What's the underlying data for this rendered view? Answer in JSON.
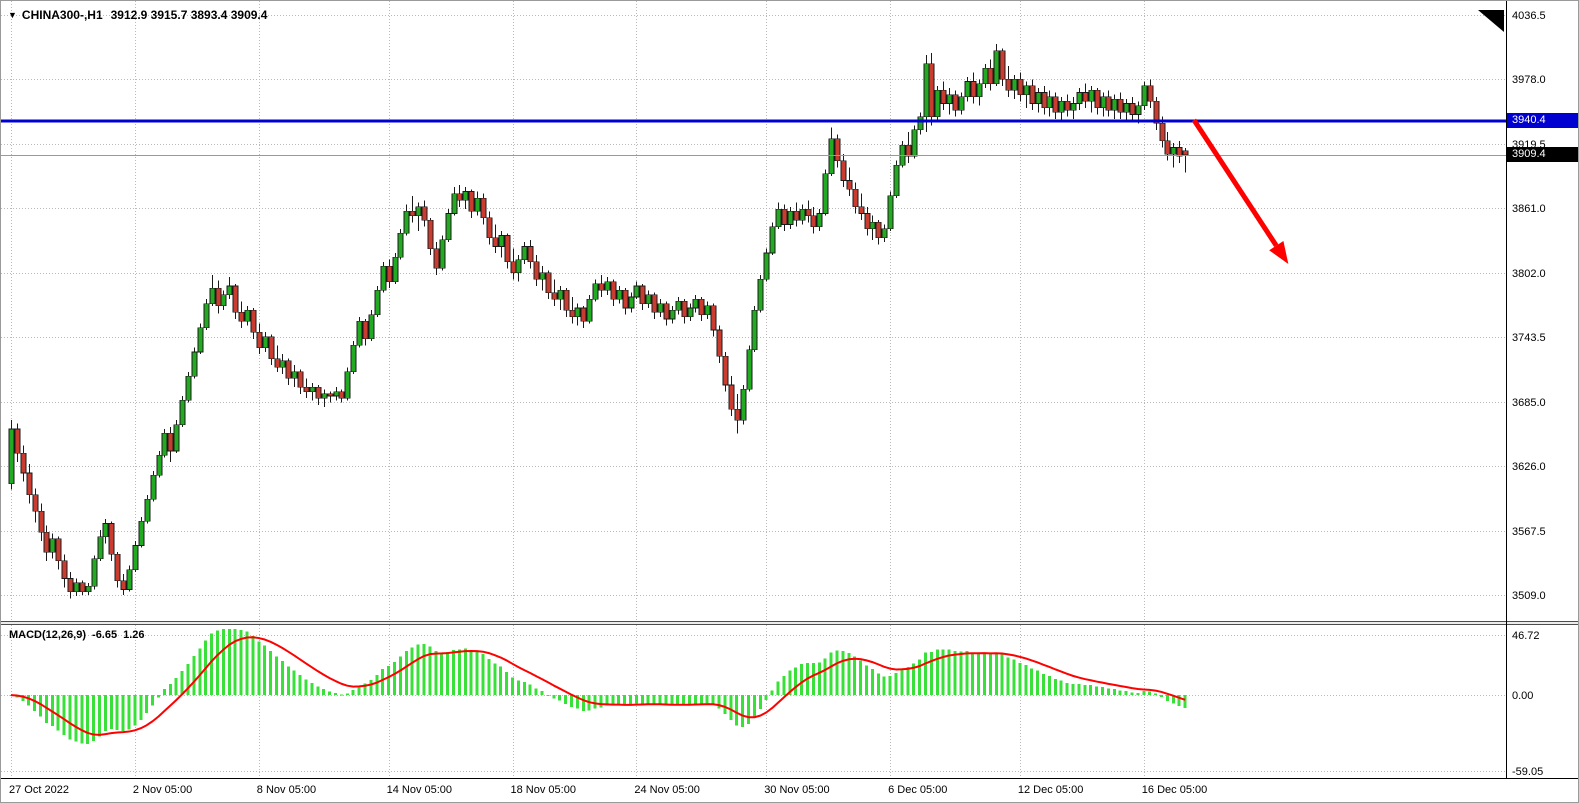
{
  "header": {
    "collapse_icon": "▼",
    "symbol_timeframe": "CHINA300-,H1",
    "ohlc": "3912.9 3915.7 3893.4 3909.4"
  },
  "colors": {
    "background": "#ffffff",
    "grid": "#b9b9b9",
    "bull": "#22ab22",
    "bear": "#cb3c30",
    "wick": "#1a1a1a",
    "outline": "#1a1a1a",
    "hline": "#0000d0",
    "current_line": "#9a9a9a",
    "arrow": "#ff0000",
    "macd_hist": "#3ae03a",
    "macd_signal": "#ff0000",
    "tag_current_bg": "#000000"
  },
  "chart_data": [
    {
      "type": "candlestick",
      "title": "CHINA300-,H1",
      "symbol": "CHINA300-",
      "timeframe": "H1",
      "last_ohlc": {
        "open": 3912.9,
        "high": 3915.7,
        "low": 3893.4,
        "close": 3909.4
      },
      "ylim": [
        3509.0,
        4036.5
      ],
      "grid": "dotted",
      "y_ticks": [
        "4036.5",
        "3978.0",
        "3919.5",
        "3861.0",
        "3802.0",
        "3743.5",
        "3685.0",
        "3626.0",
        "3567.5",
        "3509.0"
      ],
      "x_ticks": [
        {
          "bar": 0,
          "label": "27 Oct 2022"
        },
        {
          "bar": 21,
          "label": "2 Nov 05:00"
        },
        {
          "bar": 42,
          "label": "8 Nov 05:00"
        },
        {
          "bar": 64,
          "label": "14 Nov 05:00"
        },
        {
          "bar": 85,
          "label": "18 Nov 05:00"
        },
        {
          "bar": 106,
          "label": "24 Nov 05:00"
        },
        {
          "bar": 128,
          "label": "30 Nov 05:00"
        },
        {
          "bar": 149,
          "label": "6 Dec 05:00"
        },
        {
          "bar": 171,
          "label": "12 Dec 05:00"
        },
        {
          "bar": 192,
          "label": "16 Dec 05:00"
        }
      ],
      "resistance_line": {
        "price": 3940.4,
        "label": "3940.4"
      },
      "current_price": {
        "value": 3909.4,
        "label": "3909.4"
      },
      "arrow": {
        "from": {
          "bar": 200.5,
          "price": 3941
        },
        "to": {
          "bar": 216.5,
          "price": 3810
        }
      },
      "candles": [
        [
          3610,
          3668,
          3605,
          3660
        ],
        [
          3660,
          3665,
          3630,
          3638
        ],
        [
          3638,
          3645,
          3612,
          3620
        ],
        [
          3620,
          3628,
          3592,
          3600
        ],
        [
          3600,
          3606,
          3575,
          3585
        ],
        [
          3585,
          3592,
          3558,
          3566
        ],
        [
          3566,
          3572,
          3540,
          3548
        ],
        [
          3548,
          3565,
          3542,
          3560
        ],
        [
          3560,
          3562,
          3532,
          3540
        ],
        [
          3540,
          3546,
          3516,
          3524
        ],
        [
          3524,
          3530,
          3506,
          3512
        ],
        [
          3512,
          3524,
          3508,
          3520
        ],
        [
          3520,
          3522,
          3509,
          3512
        ],
        [
          3512,
          3520,
          3509,
          3517
        ],
        [
          3517,
          3545,
          3514,
          3542
        ],
        [
          3542,
          3568,
          3540,
          3562
        ],
        [
          3562,
          3578,
          3556,
          3574
        ],
        [
          3574,
          3576,
          3540,
          3546
        ],
        [
          3546,
          3548,
          3516,
          3522
        ],
        [
          3522,
          3528,
          3509,
          3514
        ],
        [
          3514,
          3536,
          3512,
          3532
        ],
        [
          3532,
          3558,
          3530,
          3554
        ],
        [
          3554,
          3580,
          3552,
          3576
        ],
        [
          3576,
          3600,
          3574,
          3596
        ],
        [
          3596,
          3622,
          3594,
          3618
        ],
        [
          3618,
          3640,
          3616,
          3636
        ],
        [
          3636,
          3660,
          3634,
          3656
        ],
        [
          3656,
          3662,
          3630,
          3640
        ],
        [
          3640,
          3668,
          3638,
          3664
        ],
        [
          3664,
          3690,
          3662,
          3686
        ],
        [
          3686,
          3712,
          3684,
          3708
        ],
        [
          3708,
          3734,
          3706,
          3730
        ],
        [
          3730,
          3756,
          3728,
          3752
        ],
        [
          3752,
          3778,
          3750,
          3774
        ],
        [
          3774,
          3800,
          3772,
          3788
        ],
        [
          3788,
          3795,
          3765,
          3772
        ],
        [
          3772,
          3786,
          3768,
          3782
        ],
        [
          3782,
          3798,
          3778,
          3790
        ],
        [
          3790,
          3792,
          3760,
          3766
        ],
        [
          3766,
          3776,
          3752,
          3758
        ],
        [
          3758,
          3772,
          3754,
          3768
        ],
        [
          3768,
          3770,
          3742,
          3748
        ],
        [
          3748,
          3756,
          3728,
          3734
        ],
        [
          3734,
          3748,
          3730,
          3744
        ],
        [
          3744,
          3746,
          3718,
          3724
        ],
        [
          3724,
          3736,
          3712,
          3716
        ],
        [
          3716,
          3728,
          3710,
          3722
        ],
        [
          3722,
          3724,
          3700,
          3706
        ],
        [
          3706,
          3718,
          3698,
          3712
        ],
        [
          3712,
          3714,
          3692,
          3698
        ],
        [
          3698,
          3706,
          3688,
          3694
        ],
        [
          3694,
          3702,
          3686,
          3698
        ],
        [
          3698,
          3700,
          3682,
          3688
        ],
        [
          3688,
          3696,
          3680,
          3692
        ],
        [
          3692,
          3694,
          3684,
          3690
        ],
        [
          3690,
          3698,
          3686,
          3694
        ],
        [
          3694,
          3696,
          3684,
          3688
        ],
        [
          3688,
          3716,
          3686,
          3712
        ],
        [
          3712,
          3740,
          3710,
          3736
        ],
        [
          3736,
          3762,
          3734,
          3758
        ],
        [
          3758,
          3760,
          3736,
          3742
        ],
        [
          3742,
          3768,
          3740,
          3764
        ],
        [
          3764,
          3790,
          3762,
          3786
        ],
        [
          3786,
          3812,
          3784,
          3808
        ],
        [
          3808,
          3814,
          3788,
          3794
        ],
        [
          3794,
          3820,
          3792,
          3816
        ],
        [
          3816,
          3842,
          3814,
          3838
        ],
        [
          3838,
          3864,
          3836,
          3858
        ],
        [
          3858,
          3872,
          3848,
          3854
        ],
        [
          3854,
          3866,
          3840,
          3862
        ],
        [
          3862,
          3868,
          3844,
          3850
        ],
        [
          3850,
          3852,
          3818,
          3824
        ],
        [
          3824,
          3830,
          3800,
          3806
        ],
        [
          3806,
          3836,
          3804,
          3832
        ],
        [
          3832,
          3860,
          3830,
          3856
        ],
        [
          3856,
          3880,
          3854,
          3874
        ],
        [
          3874,
          3882,
          3862,
          3868
        ],
        [
          3868,
          3880,
          3860,
          3876
        ],
        [
          3876,
          3878,
          3852,
          3858
        ],
        [
          3858,
          3876,
          3854,
          3870
        ],
        [
          3870,
          3874,
          3846,
          3852
        ],
        [
          3852,
          3858,
          3828,
          3834
        ],
        [
          3834,
          3846,
          3820,
          3826
        ],
        [
          3826,
          3840,
          3816,
          3836
        ],
        [
          3836,
          3838,
          3806,
          3812
        ],
        [
          3812,
          3824,
          3796,
          3802
        ],
        [
          3802,
          3818,
          3794,
          3814
        ],
        [
          3814,
          3830,
          3810,
          3826
        ],
        [
          3826,
          3832,
          3806,
          3812
        ],
        [
          3812,
          3818,
          3790,
          3796
        ],
        [
          3796,
          3808,
          3786,
          3802
        ],
        [
          3802,
          3804,
          3778,
          3784
        ],
        [
          3784,
          3796,
          3772,
          3778
        ],
        [
          3778,
          3790,
          3768,
          3786
        ],
        [
          3786,
          3788,
          3762,
          3768
        ],
        [
          3768,
          3780,
          3756,
          3762
        ],
        [
          3762,
          3774,
          3754,
          3770
        ],
        [
          3770,
          3772,
          3752,
          3758
        ],
        [
          3758,
          3782,
          3756,
          3778
        ],
        [
          3778,
          3796,
          3776,
          3792
        ],
        [
          3792,
          3800,
          3780,
          3786
        ],
        [
          3786,
          3798,
          3782,
          3794
        ],
        [
          3794,
          3796,
          3772,
          3778
        ],
        [
          3778,
          3790,
          3774,
          3786
        ],
        [
          3786,
          3788,
          3764,
          3770
        ],
        [
          3770,
          3784,
          3766,
          3780
        ],
        [
          3780,
          3794,
          3778,
          3790
        ],
        [
          3790,
          3792,
          3768,
          3774
        ],
        [
          3774,
          3786,
          3770,
          3782
        ],
        [
          3782,
          3784,
          3760,
          3766
        ],
        [
          3766,
          3778,
          3762,
          3774
        ],
        [
          3774,
          3776,
          3754,
          3760
        ],
        [
          3760,
          3772,
          3756,
          3768
        ],
        [
          3768,
          3780,
          3764,
          3776
        ],
        [
          3776,
          3778,
          3756,
          3762
        ],
        [
          3762,
          3774,
          3758,
          3770
        ],
        [
          3770,
          3782,
          3766,
          3778
        ],
        [
          3778,
          3780,
          3758,
          3764
        ],
        [
          3764,
          3776,
          3760,
          3772
        ],
        [
          3772,
          3774,
          3744,
          3750
        ],
        [
          3750,
          3754,
          3720,
          3726
        ],
        [
          3726,
          3730,
          3694,
          3700
        ],
        [
          3700,
          3708,
          3672,
          3678
        ],
        [
          3678,
          3692,
          3656,
          3668
        ],
        [
          3668,
          3700,
          3664,
          3696
        ],
        [
          3696,
          3736,
          3694,
          3732
        ],
        [
          3732,
          3772,
          3730,
          3768
        ],
        [
          3768,
          3800,
          3766,
          3796
        ],
        [
          3796,
          3824,
          3794,
          3820
        ],
        [
          3820,
          3848,
          3818,
          3844
        ],
        [
          3844,
          3866,
          3842,
          3860
        ],
        [
          3860,
          3864,
          3840,
          3846
        ],
        [
          3846,
          3862,
          3842,
          3858
        ],
        [
          3858,
          3866,
          3844,
          3850
        ],
        [
          3850,
          3864,
          3846,
          3860
        ],
        [
          3860,
          3868,
          3848,
          3854
        ],
        [
          3854,
          3862,
          3838,
          3844
        ],
        [
          3844,
          3860,
          3840,
          3856
        ],
        [
          3856,
          3896,
          3854,
          3892
        ],
        [
          3892,
          3934,
          3890,
          3924
        ],
        [
          3924,
          3928,
          3898,
          3904
        ],
        [
          3904,
          3910,
          3880,
          3886
        ],
        [
          3886,
          3898,
          3872,
          3878
        ],
        [
          3878,
          3884,
          3856,
          3862
        ],
        [
          3862,
          3874,
          3850,
          3856
        ],
        [
          3856,
          3862,
          3836,
          3842
        ],
        [
          3842,
          3854,
          3832,
          3848
        ],
        [
          3848,
          3850,
          3828,
          3834
        ],
        [
          3834,
          3846,
          3830,
          3842
        ],
        [
          3842,
          3876,
          3840,
          3872
        ],
        [
          3872,
          3904,
          3870,
          3900
        ],
        [
          3900,
          3922,
          3898,
          3918
        ],
        [
          3918,
          3930,
          3902,
          3908
        ],
        [
          3908,
          3936,
          3906,
          3932
        ],
        [
          3932,
          3948,
          3928,
          3944
        ],
        [
          3944,
          4000,
          3930,
          3992
        ],
        [
          3992,
          4002,
          3936,
          3944
        ],
        [
          3944,
          3972,
          3940,
          3968
        ],
        [
          3968,
          3976,
          3950,
          3956
        ],
        [
          3956,
          3970,
          3946,
          3964
        ],
        [
          3964,
          3968,
          3944,
          3950
        ],
        [
          3950,
          3966,
          3946,
          3962
        ],
        [
          3962,
          3980,
          3958,
          3976
        ],
        [
          3976,
          3984,
          3956,
          3962
        ],
        [
          3962,
          3978,
          3954,
          3974
        ],
        [
          3974,
          3992,
          3970,
          3988
        ],
        [
          3988,
          3996,
          3968,
          3974
        ],
        [
          3974,
          4010,
          3972,
          4004
        ],
        [
          4004,
          4006,
          3972,
          3978
        ],
        [
          3978,
          3990,
          3962,
          3968
        ],
        [
          3968,
          3982,
          3960,
          3978
        ],
        [
          3978,
          3984,
          3958,
          3964
        ],
        [
          3964,
          3976,
          3952,
          3972
        ],
        [
          3972,
          3978,
          3950,
          3956
        ],
        [
          3956,
          3970,
          3948,
          3966
        ],
        [
          3966,
          3972,
          3946,
          3952
        ],
        [
          3952,
          3968,
          3944,
          3962
        ],
        [
          3962,
          3966,
          3942,
          3948
        ],
        [
          3948,
          3962,
          3940,
          3958
        ],
        [
          3958,
          3964,
          3944,
          3950
        ],
        [
          3950,
          3962,
          3942,
          3956
        ],
        [
          3956,
          3970,
          3950,
          3966
        ],
        [
          3966,
          3974,
          3952,
          3958
        ],
        [
          3958,
          3972,
          3948,
          3968
        ],
        [
          3968,
          3970,
          3946,
          3952
        ],
        [
          3952,
          3966,
          3944,
          3962
        ],
        [
          3962,
          3968,
          3944,
          3950
        ],
        [
          3950,
          3964,
          3942,
          3960
        ],
        [
          3960,
          3966,
          3942,
          3948
        ],
        [
          3948,
          3960,
          3940,
          3956
        ],
        [
          3956,
          3962,
          3940,
          3946
        ],
        [
          3946,
          3958,
          3938,
          3954
        ],
        [
          3954,
          3976,
          3950,
          3972
        ],
        [
          3972,
          3978,
          3952,
          3958
        ],
        [
          3958,
          3962,
          3932,
          3938
        ],
        [
          3938,
          3944,
          3916,
          3922
        ],
        [
          3922,
          3930,
          3904,
          3910
        ],
        [
          3910,
          3920,
          3898,
          3916
        ],
        [
          3916,
          3922,
          3902,
          3908
        ],
        [
          3912.9,
          3915.7,
          3893.4,
          3909.4
        ]
      ]
    },
    {
      "type": "bar",
      "name": "MACD",
      "label": "MACD(12,26,9)",
      "value_main": "-6.65",
      "value_signal": "1.26",
      "params": {
        "fast": 12,
        "slow": 26,
        "signal": 9
      },
      "ylim": [
        -59.05,
        46.72
      ],
      "y_ticks": [
        "46.72",
        "0.00",
        "-59.05"
      ],
      "derived_from": "histogram and signal computed from candle closes via EMA(12,26,9)"
    }
  ]
}
